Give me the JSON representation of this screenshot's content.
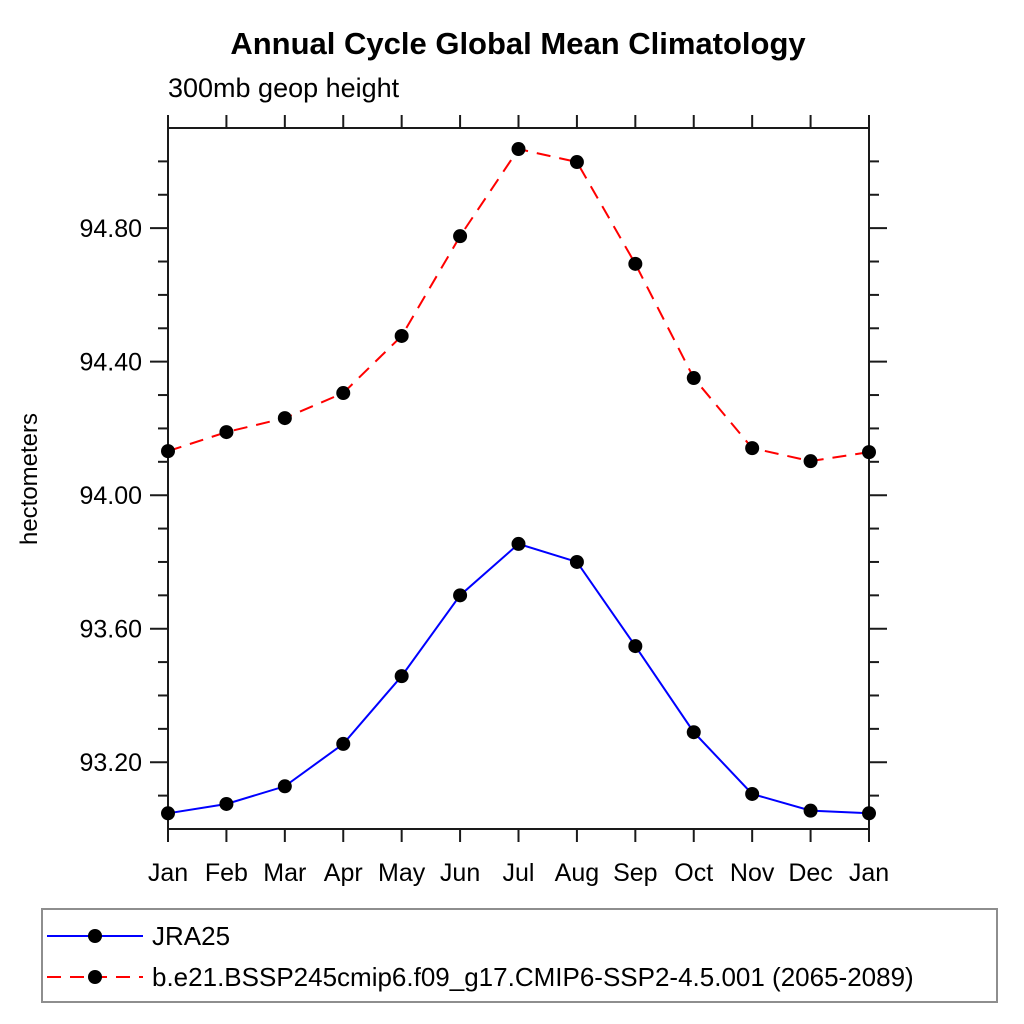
{
  "page": {
    "background_color": "#ffffff",
    "text_color": "#000000",
    "axis_color": "#1a1a1a",
    "legend_border_color": "#8e8e8e"
  },
  "chart_data": {
    "type": "line",
    "title": "Annual Cycle Global Mean Climatology",
    "subtitle": "300mb geop height",
    "xlabel": "",
    "ylabel": "hectometers",
    "categories": [
      "Jan",
      "Feb",
      "Mar",
      "Apr",
      "May",
      "Jun",
      "Jul",
      "Aug",
      "Sep",
      "Oct",
      "Nov",
      "Dec",
      "Jan"
    ],
    "ylim": [
      93.0,
      95.1
    ],
    "y_major_ticks": [
      93.2,
      93.6,
      94.0,
      94.4,
      94.8
    ],
    "y_major_tick_labels": [
      "93.20",
      "93.60",
      "94.00",
      "94.40",
      "94.80"
    ],
    "y_minor_step": 0.1,
    "grid": false,
    "legend_position": "bottom",
    "marker": "filled-circle",
    "marker_color": "#000000",
    "series": [
      {
        "name": "JRA25",
        "color": "#0000ff",
        "line_style": "solid",
        "values": [
          93.047,
          93.075,
          93.128,
          93.255,
          93.458,
          93.7,
          93.854,
          93.8,
          93.548,
          93.29,
          93.105,
          93.055,
          93.047
        ]
      },
      {
        "name": "b.e21.BSSP245cmip6.f09_g17.CMIP6-SSP2-4.5.001 (2065-2089)",
        "color": "#ff0000",
        "line_style": "dashed",
        "values": [
          94.132,
          94.189,
          94.231,
          94.306,
          94.477,
          94.776,
          95.037,
          94.998,
          94.693,
          94.351,
          94.141,
          94.102,
          94.129
        ]
      }
    ]
  }
}
